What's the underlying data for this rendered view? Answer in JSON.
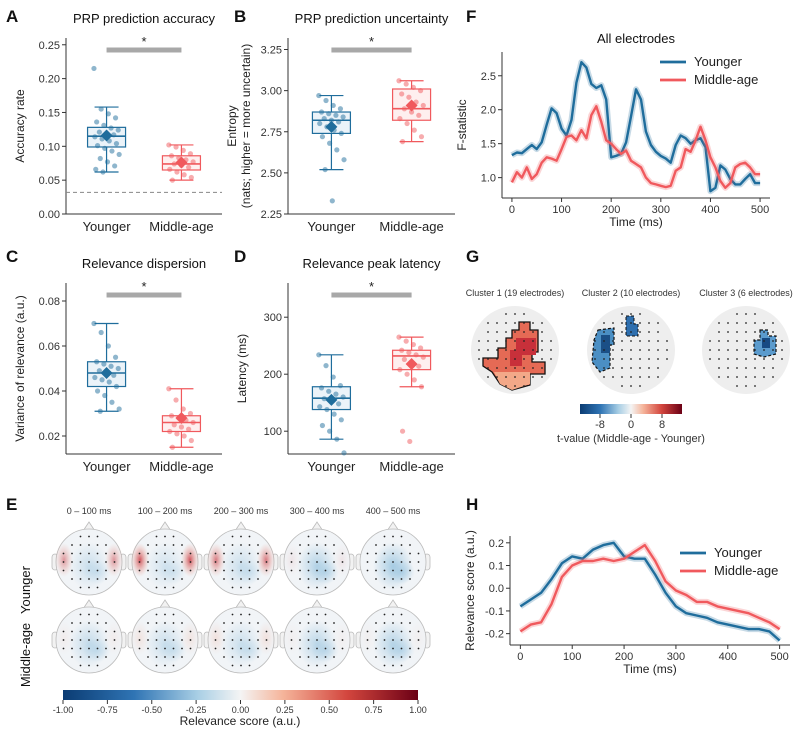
{
  "colors": {
    "younger": "#1f6d9c",
    "middle": "#f0595d",
    "sig_bar": "#a8a8a8"
  },
  "panel_labels": [
    "A",
    "B",
    "C",
    "D",
    "E",
    "F",
    "G",
    "H"
  ],
  "chart_data": [
    {
      "id": "A",
      "type": "box",
      "title": "PRP prediction accuracy",
      "ylabel": "Accuracy rate",
      "categories": [
        "Younger",
        "Middle-age"
      ],
      "ylim": [
        0,
        0.26
      ],
      "yticks": [
        "0.00",
        "0.05",
        "0.10",
        "0.15",
        "0.20",
        "0.25"
      ],
      "chance_level": 0.032,
      "significance": "*",
      "groups": [
        {
          "name": "Younger",
          "q1": 0.099,
          "median": 0.115,
          "q3": 0.128,
          "whisker_low": 0.062,
          "whisker_high": 0.158,
          "mean": 0.116,
          "points": [
            0.215,
            0.155,
            0.148,
            0.142,
            0.136,
            0.131,
            0.127,
            0.124,
            0.121,
            0.119,
            0.117,
            0.114,
            0.111,
            0.108,
            0.104,
            0.101,
            0.097,
            0.093,
            0.088,
            0.082,
            0.077,
            0.071,
            0.066,
            0.062
          ]
        },
        {
          "name": "Middle-age",
          "q1": 0.065,
          "median": 0.074,
          "q3": 0.086,
          "whisker_low": 0.05,
          "whisker_high": 0.102,
          "mean": 0.076,
          "points": [
            0.102,
            0.099,
            0.094,
            0.089,
            0.086,
            0.083,
            0.08,
            0.077,
            0.074,
            0.072,
            0.069,
            0.066,
            0.062,
            0.058,
            0.054,
            0.05
          ]
        }
      ]
    },
    {
      "id": "B",
      "type": "box",
      "title": "PRP prediction uncertainty",
      "ylabel": "Entropy",
      "ylabel2": "(nats; higher = more uncertain)",
      "categories": [
        "Younger",
        "Middle-age"
      ],
      "ylim": [
        2.25,
        3.32
      ],
      "yticks": [
        "2.25",
        "2.50",
        "2.75",
        "3.00",
        "3.25"
      ],
      "significance": "*",
      "groups": [
        {
          "name": "Younger",
          "q1": 2.74,
          "median": 2.82,
          "q3": 2.87,
          "whisker_low": 2.52,
          "whisker_high": 2.97,
          "mean": 2.78,
          "points": [
            2.97,
            2.94,
            2.91,
            2.89,
            2.87,
            2.86,
            2.85,
            2.84,
            2.83,
            2.82,
            2.81,
            2.8,
            2.78,
            2.76,
            2.74,
            2.72,
            2.68,
            2.64,
            2.58,
            2.52,
            2.33
          ]
        },
        {
          "name": "Middle-age",
          "q1": 2.82,
          "median": 2.89,
          "q3": 3.01,
          "whisker_low": 2.69,
          "whisker_high": 3.06,
          "mean": 2.91,
          "points": [
            3.06,
            3.04,
            3.02,
            3.0,
            2.98,
            2.96,
            2.93,
            2.91,
            2.89,
            2.87,
            2.85,
            2.83,
            2.8,
            2.76,
            2.72,
            2.69
          ]
        }
      ]
    },
    {
      "id": "C",
      "type": "box",
      "title": "Relevance dispersion",
      "ylabel": "Variance of relevance (a.u.)",
      "categories": [
        "Younger",
        "Middle-age"
      ],
      "ylim": [
        0.012,
        0.088
      ],
      "yticks": [
        "0.02",
        "0.04",
        "0.06",
        "0.08"
      ],
      "significance": "*",
      "groups": [
        {
          "name": "Younger",
          "q1": 0.042,
          "median": 0.048,
          "q3": 0.053,
          "whisker_low": 0.031,
          "whisker_high": 0.07,
          "mean": 0.048,
          "points": [
            0.07,
            0.066,
            0.06,
            0.055,
            0.053,
            0.052,
            0.051,
            0.05,
            0.049,
            0.048,
            0.047,
            0.046,
            0.045,
            0.044,
            0.042,
            0.04,
            0.038,
            0.035,
            0.032,
            0.031
          ]
        },
        {
          "name": "Middle-age",
          "q1": 0.022,
          "median": 0.026,
          "q3": 0.029,
          "whisker_low": 0.015,
          "whisker_high": 0.041,
          "mean": 0.028,
          "points": [
            0.041,
            0.036,
            0.032,
            0.03,
            0.029,
            0.028,
            0.027,
            0.026,
            0.025,
            0.024,
            0.023,
            0.022,
            0.021,
            0.02,
            0.018,
            0.015
          ]
        }
      ]
    },
    {
      "id": "D",
      "type": "box",
      "title": "Relevance peak latency",
      "ylabel": "Latency (ms)",
      "categories": [
        "Younger",
        "Middle-age"
      ],
      "ylim": [
        60,
        360
      ],
      "yticks": [
        "100",
        "200",
        "300"
      ],
      "significance": "*",
      "groups": [
        {
          "name": "Younger",
          "q1": 138,
          "median": 158,
          "q3": 178,
          "whisker_low": 86,
          "whisker_high": 234,
          "mean": 155,
          "points": [
            234,
            215,
            195,
            180,
            176,
            170,
            165,
            160,
            157,
            153,
            148,
            143,
            138,
            130,
            120,
            110,
            100,
            86,
            62
          ]
        },
        {
          "name": "Middle-age",
          "q1": 208,
          "median": 232,
          "q3": 242,
          "whisker_low": 178,
          "whisker_high": 265,
          "mean": 218,
          "points": [
            265,
            258,
            252,
            246,
            242,
            238,
            234,
            230,
            226,
            220,
            214,
            208,
            200,
            190,
            178,
            100,
            82
          ]
        }
      ]
    },
    {
      "id": "F",
      "type": "line",
      "title": "All electrodes",
      "xlabel": "Time (ms)",
      "ylabel": "F-statistic",
      "xlim": [
        -20,
        520
      ],
      "ylim": [
        0.7,
        2.85
      ],
      "xticks": [
        0,
        100,
        200,
        300,
        400,
        500
      ],
      "yticks": [
        "1.0",
        "1.5",
        "2.0",
        "2.5"
      ],
      "series": [
        {
          "name": "Younger",
          "x": [
            0,
            10,
            20,
            30,
            40,
            50,
            60,
            70,
            80,
            90,
            100,
            110,
            120,
            130,
            140,
            150,
            160,
            170,
            180,
            190,
            200,
            210,
            220,
            230,
            240,
            250,
            260,
            270,
            280,
            290,
            300,
            310,
            320,
            330,
            340,
            350,
            360,
            370,
            380,
            390,
            400,
            410,
            420,
            430,
            440,
            450,
            460,
            470,
            480,
            490,
            500
          ],
          "y": [
            1.33,
            1.37,
            1.36,
            1.42,
            1.48,
            1.42,
            1.52,
            1.78,
            2.02,
            1.95,
            1.72,
            1.62,
            1.85,
            2.4,
            2.7,
            2.62,
            2.38,
            2.32,
            2.36,
            2.15,
            1.3,
            1.32,
            1.35,
            1.52,
            1.9,
            2.3,
            2.15,
            1.68,
            1.48,
            1.38,
            1.32,
            1.28,
            1.22,
            1.48,
            1.62,
            1.58,
            1.5,
            1.55,
            1.58,
            1.45,
            0.8,
            0.85,
            1.18,
            1.12,
            0.98,
            0.9,
            0.9,
            0.98,
            1.05,
            0.92,
            0.92
          ]
        },
        {
          "name": "Middle-age",
          "x": [
            0,
            10,
            20,
            30,
            40,
            50,
            60,
            70,
            80,
            90,
            100,
            110,
            120,
            130,
            140,
            150,
            160,
            170,
            180,
            190,
            200,
            210,
            220,
            230,
            240,
            250,
            260,
            270,
            280,
            290,
            300,
            310,
            320,
            330,
            340,
            350,
            360,
            370,
            380,
            390,
            400,
            410,
            420,
            430,
            440,
            450,
            460,
            470,
            480,
            490,
            500
          ],
          "y": [
            0.93,
            1.08,
            1.0,
            1.15,
            0.98,
            1.05,
            1.22,
            1.3,
            1.28,
            1.25,
            1.42,
            1.6,
            1.62,
            1.55,
            1.7,
            1.58,
            1.92,
            2.05,
            1.82,
            1.55,
            1.5,
            1.42,
            1.35,
            1.4,
            1.25,
            1.2,
            1.15,
            1.0,
            0.92,
            0.9,
            0.88,
            0.86,
            0.88,
            1.1,
            1.15,
            1.42,
            1.38,
            1.55,
            1.75,
            1.55,
            1.3,
            1.15,
            0.95,
            0.85,
            0.92,
            1.15,
            1.2,
            1.22,
            1.15,
            1.05,
            1.05
          ]
        }
      ]
    },
    {
      "id": "H",
      "type": "line",
      "xlabel": "Time (ms)",
      "ylabel": "Relevance score (a.u.)",
      "xlim": [
        -20,
        520
      ],
      "ylim": [
        -0.25,
        0.23
      ],
      "xticks": [
        0,
        100,
        200,
        300,
        400,
        500
      ],
      "yticks": [
        "-0.2",
        "-0.1",
        "0.0",
        "0.1",
        "0.2"
      ],
      "series": [
        {
          "name": "Younger",
          "x": [
            0,
            20,
            40,
            60,
            80,
            100,
            120,
            140,
            160,
            180,
            200,
            220,
            240,
            260,
            280,
            300,
            320,
            340,
            360,
            380,
            400,
            420,
            440,
            460,
            480,
            500
          ],
          "y": [
            -0.08,
            -0.05,
            -0.02,
            0.04,
            0.11,
            0.14,
            0.13,
            0.17,
            0.19,
            0.2,
            0.14,
            0.13,
            0.13,
            0.06,
            -0.02,
            -0.08,
            -0.11,
            -0.12,
            -0.13,
            -0.15,
            -0.16,
            -0.17,
            -0.18,
            -0.18,
            -0.19,
            -0.23
          ]
        },
        {
          "name": "Middle-age",
          "x": [
            0,
            20,
            40,
            60,
            80,
            100,
            120,
            140,
            160,
            180,
            200,
            220,
            240,
            260,
            280,
            300,
            320,
            340,
            360,
            380,
            400,
            420,
            440,
            460,
            480,
            500
          ],
          "y": [
            -0.19,
            -0.16,
            -0.15,
            -0.07,
            0.05,
            0.1,
            0.12,
            0.12,
            0.13,
            0.12,
            0.13,
            0.16,
            0.19,
            0.12,
            0.03,
            -0.01,
            -0.03,
            -0.06,
            -0.06,
            -0.08,
            -0.09,
            -0.1,
            -0.11,
            -0.13,
            -0.15,
            -0.18
          ]
        }
      ]
    }
  ],
  "panel_e": {
    "row_labels": [
      "Younger",
      "Middle-age"
    ],
    "time_windows": [
      "0 – 100 ms",
      "100 – 200 ms",
      "200 – 300 ms",
      "300 – 400 ms",
      "400 – 500 ms"
    ],
    "colorbar_label": "Relevance score (a.u.)",
    "colorbar_ticks": [
      "-1.00",
      "-0.75",
      "-0.50",
      "-0.25",
      "0.00",
      "0.25",
      "0.50",
      "0.75",
      "1.00"
    ]
  },
  "panel_g": {
    "clusters": [
      "Cluster 1 (19 electrodes)",
      "Cluster 2 (10 electrodes)",
      "Cluster 3 (6 electrodes)"
    ],
    "colorbar_label": "t-value (Middle-age - Younger)",
    "colorbar_ticks": [
      "-8",
      "0",
      "8"
    ]
  }
}
